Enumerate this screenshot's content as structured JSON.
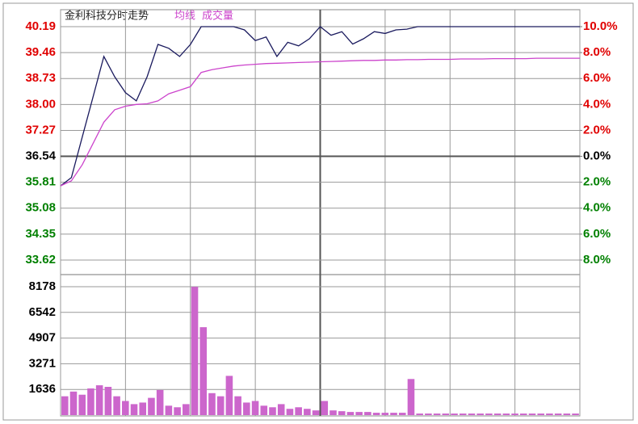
{
  "chart_data": [
    {
      "type": "line",
      "title": "金利科技分时走势",
      "xlim": [
        0,
        240
      ],
      "xticks": [
        0,
        30,
        60,
        90,
        120,
        150,
        180,
        210,
        240
      ],
      "ylim": [
        33.62,
        40.19
      ],
      "yticks": [
        40.19,
        39.46,
        38.73,
        {
          "value": 38,
          "label": "38.00"
        },
        37.27,
        36.54,
        35.81,
        35.08,
        34.35,
        33.62
      ],
      "y2lim": [
        -8,
        10
      ],
      "y2ticks": [
        {
          "value": 10,
          "label": "10.0%"
        },
        {
          "value": 8,
          "label": "8.0%"
        },
        {
          "value": 6,
          "label": "6.0%"
        },
        {
          "value": 4,
          "label": "4.0%"
        },
        {
          "value": 2,
          "label": "2.0%"
        },
        {
          "value": 0,
          "label": "0.0%"
        },
        {
          "value": -2,
          "label": "2.0%"
        },
        {
          "value": -4,
          "label": "4.0%"
        },
        {
          "value": -6,
          "label": "6.0%"
        },
        {
          "value": -8,
          "label": "8.0%"
        }
      ],
      "up_color": "#e00000",
      "down_color": "#008000",
      "flat_color": "#000000",
      "x": [
        0,
        5,
        10,
        15,
        20,
        25,
        30,
        35,
        40,
        45,
        50,
        55,
        60,
        65,
        70,
        75,
        80,
        85,
        90,
        95,
        100,
        105,
        110,
        115,
        120,
        125,
        130,
        135,
        140,
        145,
        150,
        155,
        160,
        165,
        170,
        175,
        180,
        185,
        190,
        195,
        200,
        205,
        210,
        215,
        220,
        225,
        230,
        235,
        240
      ],
      "series": [
        {
          "color": "#1a1a5e",
          "values": [
            35.71,
            35.94,
            37.08,
            38.21,
            39.35,
            38.78,
            38.33,
            38.1,
            38.78,
            39.69,
            39.58,
            39.35,
            39.69,
            40.19,
            40.19,
            40.19,
            40.19,
            40.1,
            39.8,
            39.9,
            39.35,
            39.75,
            39.65,
            39.85,
            40.19,
            39.95,
            40.05,
            39.7,
            39.85,
            40.05,
            40.0,
            40.1,
            40.12,
            40.19,
            40.19,
            40.19,
            40.19,
            40.19,
            40.19,
            40.19,
            40.19,
            40.19,
            40.19,
            40.19,
            40.19,
            40.19,
            40.19,
            40.19,
            40.19
          ]
        },
        {
          "name": "均线",
          "color": "#cc44cc",
          "values": [
            35.71,
            35.85,
            36.3,
            36.9,
            37.5,
            37.85,
            37.95,
            38.0,
            38.02,
            38.1,
            38.3,
            38.4,
            38.5,
            38.9,
            38.98,
            39.03,
            39.08,
            39.11,
            39.13,
            39.15,
            39.16,
            39.17,
            39.18,
            39.19,
            39.2,
            39.21,
            39.22,
            39.23,
            39.24,
            39.24,
            39.25,
            39.25,
            39.26,
            39.26,
            39.27,
            39.27,
            39.27,
            39.28,
            39.28,
            39.28,
            39.29,
            39.29,
            39.29,
            39.29,
            39.3,
            39.3,
            39.3,
            39.3,
            39.3
          ]
        }
      ]
    },
    {
      "type": "bar",
      "title": "成交量",
      "color": "#cc66cc",
      "xlim": [
        0,
        240
      ],
      "ylim": [
        0,
        8178
      ],
      "yticks": [
        8178,
        6542,
        4907,
        3271,
        1636
      ],
      "x": [
        0,
        4,
        8,
        12,
        16,
        20,
        24,
        28,
        32,
        36,
        40,
        44,
        48,
        52,
        56,
        60,
        64,
        68,
        72,
        76,
        80,
        84,
        88,
        92,
        96,
        100,
        104,
        108,
        112,
        116,
        120,
        124,
        128,
        132,
        136,
        140,
        144,
        148,
        152,
        156,
        160,
        164,
        168,
        172,
        176,
        180,
        184,
        188,
        192,
        196,
        200,
        204,
        208,
        212,
        216,
        220,
        224,
        228,
        232,
        236
      ],
      "values": [
        1200,
        1500,
        1300,
        1700,
        1900,
        1800,
        1200,
        900,
        700,
        800,
        1100,
        1600,
        600,
        500,
        700,
        8170,
        5600,
        1400,
        1200,
        2500,
        1200,
        800,
        900,
        600,
        500,
        700,
        400,
        500,
        400,
        300,
        900,
        300,
        250,
        200,
        200,
        200,
        150,
        150,
        150,
        150,
        2300,
        100,
        100,
        100,
        100,
        100,
        100,
        100,
        100,
        100,
        100,
        100,
        100,
        100,
        100,
        100,
        100,
        100,
        100,
        100
      ]
    }
  ]
}
